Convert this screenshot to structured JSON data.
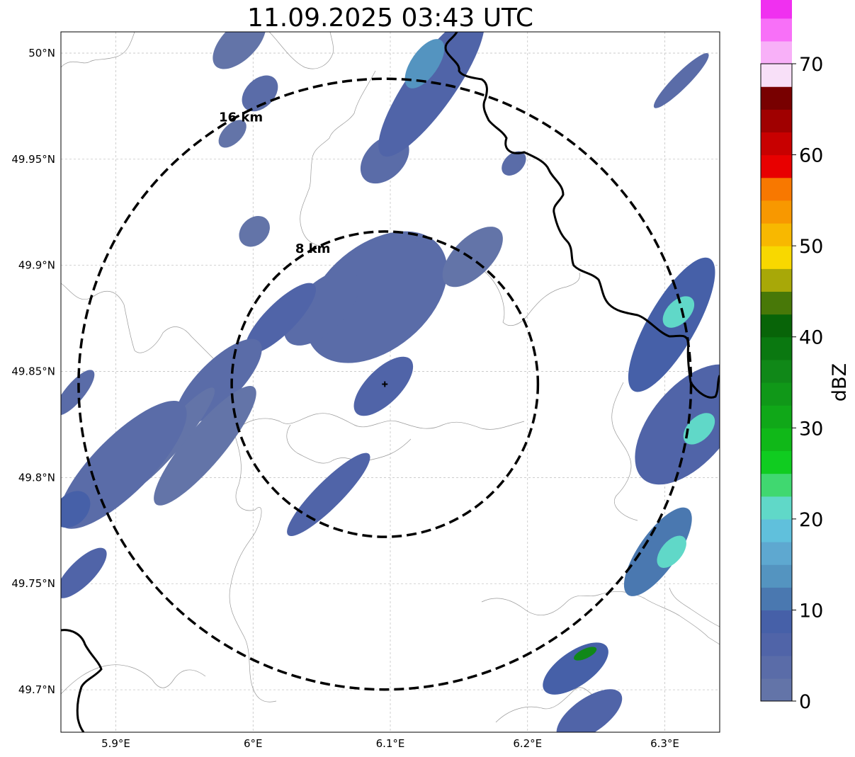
{
  "title": "11.09.2025 03:43 UTC",
  "map": {
    "lon_range": [
      5.86,
      6.34
    ],
    "lat_range": [
      49.68,
      50.01
    ],
    "x_ticks": [
      5.9,
      6.0,
      6.1,
      6.2,
      6.3
    ],
    "x_tick_labels": [
      "5.9°E",
      "6°E",
      "6.1°E",
      "6.2°E",
      "6.3°E"
    ],
    "y_ticks": [
      49.7,
      49.75,
      49.8,
      49.85,
      49.9,
      49.95,
      50.0
    ],
    "y_tick_labels": [
      "49.7°N",
      "49.75°N",
      "49.8°N",
      "49.85°N",
      "49.9°N",
      "49.95°N",
      "50°N"
    ],
    "grid": true,
    "radar_site": {
      "lon": 6.096,
      "lat": 49.844
    },
    "range_rings": [
      {
        "radius_km": 8,
        "label": "8 km"
      },
      {
        "radius_km": 16,
        "label": "16 km"
      }
    ]
  },
  "colorbar": {
    "label": "dBZ",
    "min": 0,
    "max": 70,
    "step": 2.5,
    "tick_values": [
      0,
      10,
      20,
      30,
      40,
      50,
      60,
      70
    ],
    "tick_labels": [
      "0",
      "10",
      "20",
      "30",
      "40",
      "50",
      "60",
      "70"
    ],
    "colors": [
      "#6374a8",
      "#5a6ca8",
      "#5064a8",
      "#4660a8",
      "#4a78b0",
      "#5494c0",
      "#5ea8d0",
      "#60c0dc",
      "#60d8c8",
      "#40d870",
      "#10cc20",
      "#10b818",
      "#10a818",
      "#109818",
      "#108818",
      "#0a7810",
      "#086408",
      "#487808",
      "#a8a808",
      "#f8d800",
      "#f8b800",
      "#f89800",
      "#f87800",
      "#e80000",
      "#c80000",
      "#a00000",
      "#780000",
      "#f8e0f8",
      "#f8b0f8",
      "#f870f8",
      "#f030f0"
    ]
  },
  "echoes": [
    {
      "lon": 6.09,
      "lat": 49.885,
      "major_km": 8.5,
      "minor_km": 5.5,
      "angle": -40,
      "dbz": 3
    },
    {
      "lon": 6.05,
      "lat": 49.88,
      "major_km": 5,
      "minor_km": 2.5,
      "angle": -45,
      "dbz": 4
    },
    {
      "lon": 6.095,
      "lat": 49.843,
      "major_km": 4,
      "minor_km": 1.8,
      "angle": -45,
      "dbz": 5
    },
    {
      "lon": 6.02,
      "lat": 49.875,
      "major_km": 5,
      "minor_km": 1.6,
      "angle": -45,
      "dbz": 6
    },
    {
      "lon": 6.001,
      "lat": 49.916,
      "major_km": 1.8,
      "minor_km": 1.4,
      "angle": -45,
      "dbz": 2
    },
    {
      "lon": 6.096,
      "lat": 49.95,
      "major_km": 3,
      "minor_km": 2,
      "angle": -45,
      "dbz": 4
    },
    {
      "lon": 6.005,
      "lat": 49.981,
      "major_km": 2.2,
      "minor_km": 1.5,
      "angle": -45,
      "dbz": 3
    },
    {
      "lon": 5.99,
      "lat": 50.005,
      "major_km": 3.5,
      "minor_km": 1.8,
      "angle": -45,
      "dbz": 2
    },
    {
      "lon": 5.985,
      "lat": 49.962,
      "major_km": 1.8,
      "minor_km": 1,
      "angle": -45,
      "dbz": 2
    },
    {
      "lon": 6.12,
      "lat": 49.905,
      "major_km": 2,
      "minor_km": 1.2,
      "angle": -45,
      "dbz": 3
    },
    {
      "lon": 6.16,
      "lat": 49.904,
      "major_km": 4,
      "minor_km": 2,
      "angle": -45,
      "dbz": 2
    },
    {
      "lon": 6.13,
      "lat": 49.985,
      "major_km": 9,
      "minor_km": 2.5,
      "angle": -55,
      "dbz": 5
    },
    {
      "lon": 6.125,
      "lat": 49.995,
      "major_km": 3,
      "minor_km": 1.4,
      "angle": -55,
      "dbz": 14
    },
    {
      "lon": 6.19,
      "lat": 49.948,
      "major_km": 1.5,
      "minor_km": 1,
      "angle": -45,
      "dbz": 3
    },
    {
      "lon": 5.975,
      "lat": 49.845,
      "major_km": 6,
      "minor_km": 2.2,
      "angle": -45,
      "dbz": 3
    },
    {
      "lon": 5.965,
      "lat": 49.815,
      "major_km": 8,
      "minor_km": 2,
      "angle": -50,
      "dbz": 2
    },
    {
      "lon": 5.94,
      "lat": 49.818,
      "major_km": 7,
      "minor_km": 1.3,
      "angle": -50,
      "dbz": 2
    },
    {
      "lon": 5.905,
      "lat": 49.806,
      "major_km": 9,
      "minor_km": 3,
      "angle": -45,
      "dbz": 4
    },
    {
      "lon": 5.868,
      "lat": 49.785,
      "major_km": 2.2,
      "minor_km": 1.6,
      "angle": -45,
      "dbz": 8
    },
    {
      "lon": 5.875,
      "lat": 49.755,
      "major_km": 3.5,
      "minor_km": 1.3,
      "angle": -45,
      "dbz": 6
    },
    {
      "lon": 5.87,
      "lat": 49.84,
      "major_km": 3,
      "minor_km": 1,
      "angle": -50,
      "dbz": 3
    },
    {
      "lon": 6.055,
      "lat": 49.792,
      "major_km": 6,
      "minor_km": 1.4,
      "angle": -45,
      "dbz": 5
    },
    {
      "lon": 6.305,
      "lat": 49.872,
      "major_km": 8,
      "minor_km": 2.5,
      "angle": -60,
      "dbz": 9
    },
    {
      "lon": 6.31,
      "lat": 49.878,
      "major_km": 2,
      "minor_km": 1.2,
      "angle": -45,
      "dbz": 21
    },
    {
      "lon": 6.318,
      "lat": 49.825,
      "major_km": 7.5,
      "minor_km": 4,
      "angle": -50,
      "dbz": 6
    },
    {
      "lon": 6.325,
      "lat": 49.823,
      "major_km": 2,
      "minor_km": 1.2,
      "angle": -45,
      "dbz": 22
    },
    {
      "lon": 6.295,
      "lat": 49.765,
      "major_km": 5.5,
      "minor_km": 2,
      "angle": -55,
      "dbz": 10
    },
    {
      "lon": 6.305,
      "lat": 49.765,
      "major_km": 2,
      "minor_km": 1.1,
      "angle": -50,
      "dbz": 21
    },
    {
      "lon": 6.235,
      "lat": 49.71,
      "major_km": 4,
      "minor_km": 1.8,
      "angle": -35,
      "dbz": 9
    },
    {
      "lon": 6.242,
      "lat": 49.717,
      "major_km": 1.3,
      "minor_km": 0.5,
      "angle": -25,
      "dbz": 37
    },
    {
      "lon": 6.245,
      "lat": 49.688,
      "major_km": 4,
      "minor_km": 1.8,
      "angle": -35,
      "dbz": 6
    },
    {
      "lon": 6.312,
      "lat": 49.987,
      "major_km": 4,
      "minor_km": 0.8,
      "angle": -45,
      "dbz": 3
    }
  ],
  "colors": {
    "border": "#000000",
    "admin": "#999999",
    "grid": "#bbbbbb",
    "rings": "#000000"
  }
}
